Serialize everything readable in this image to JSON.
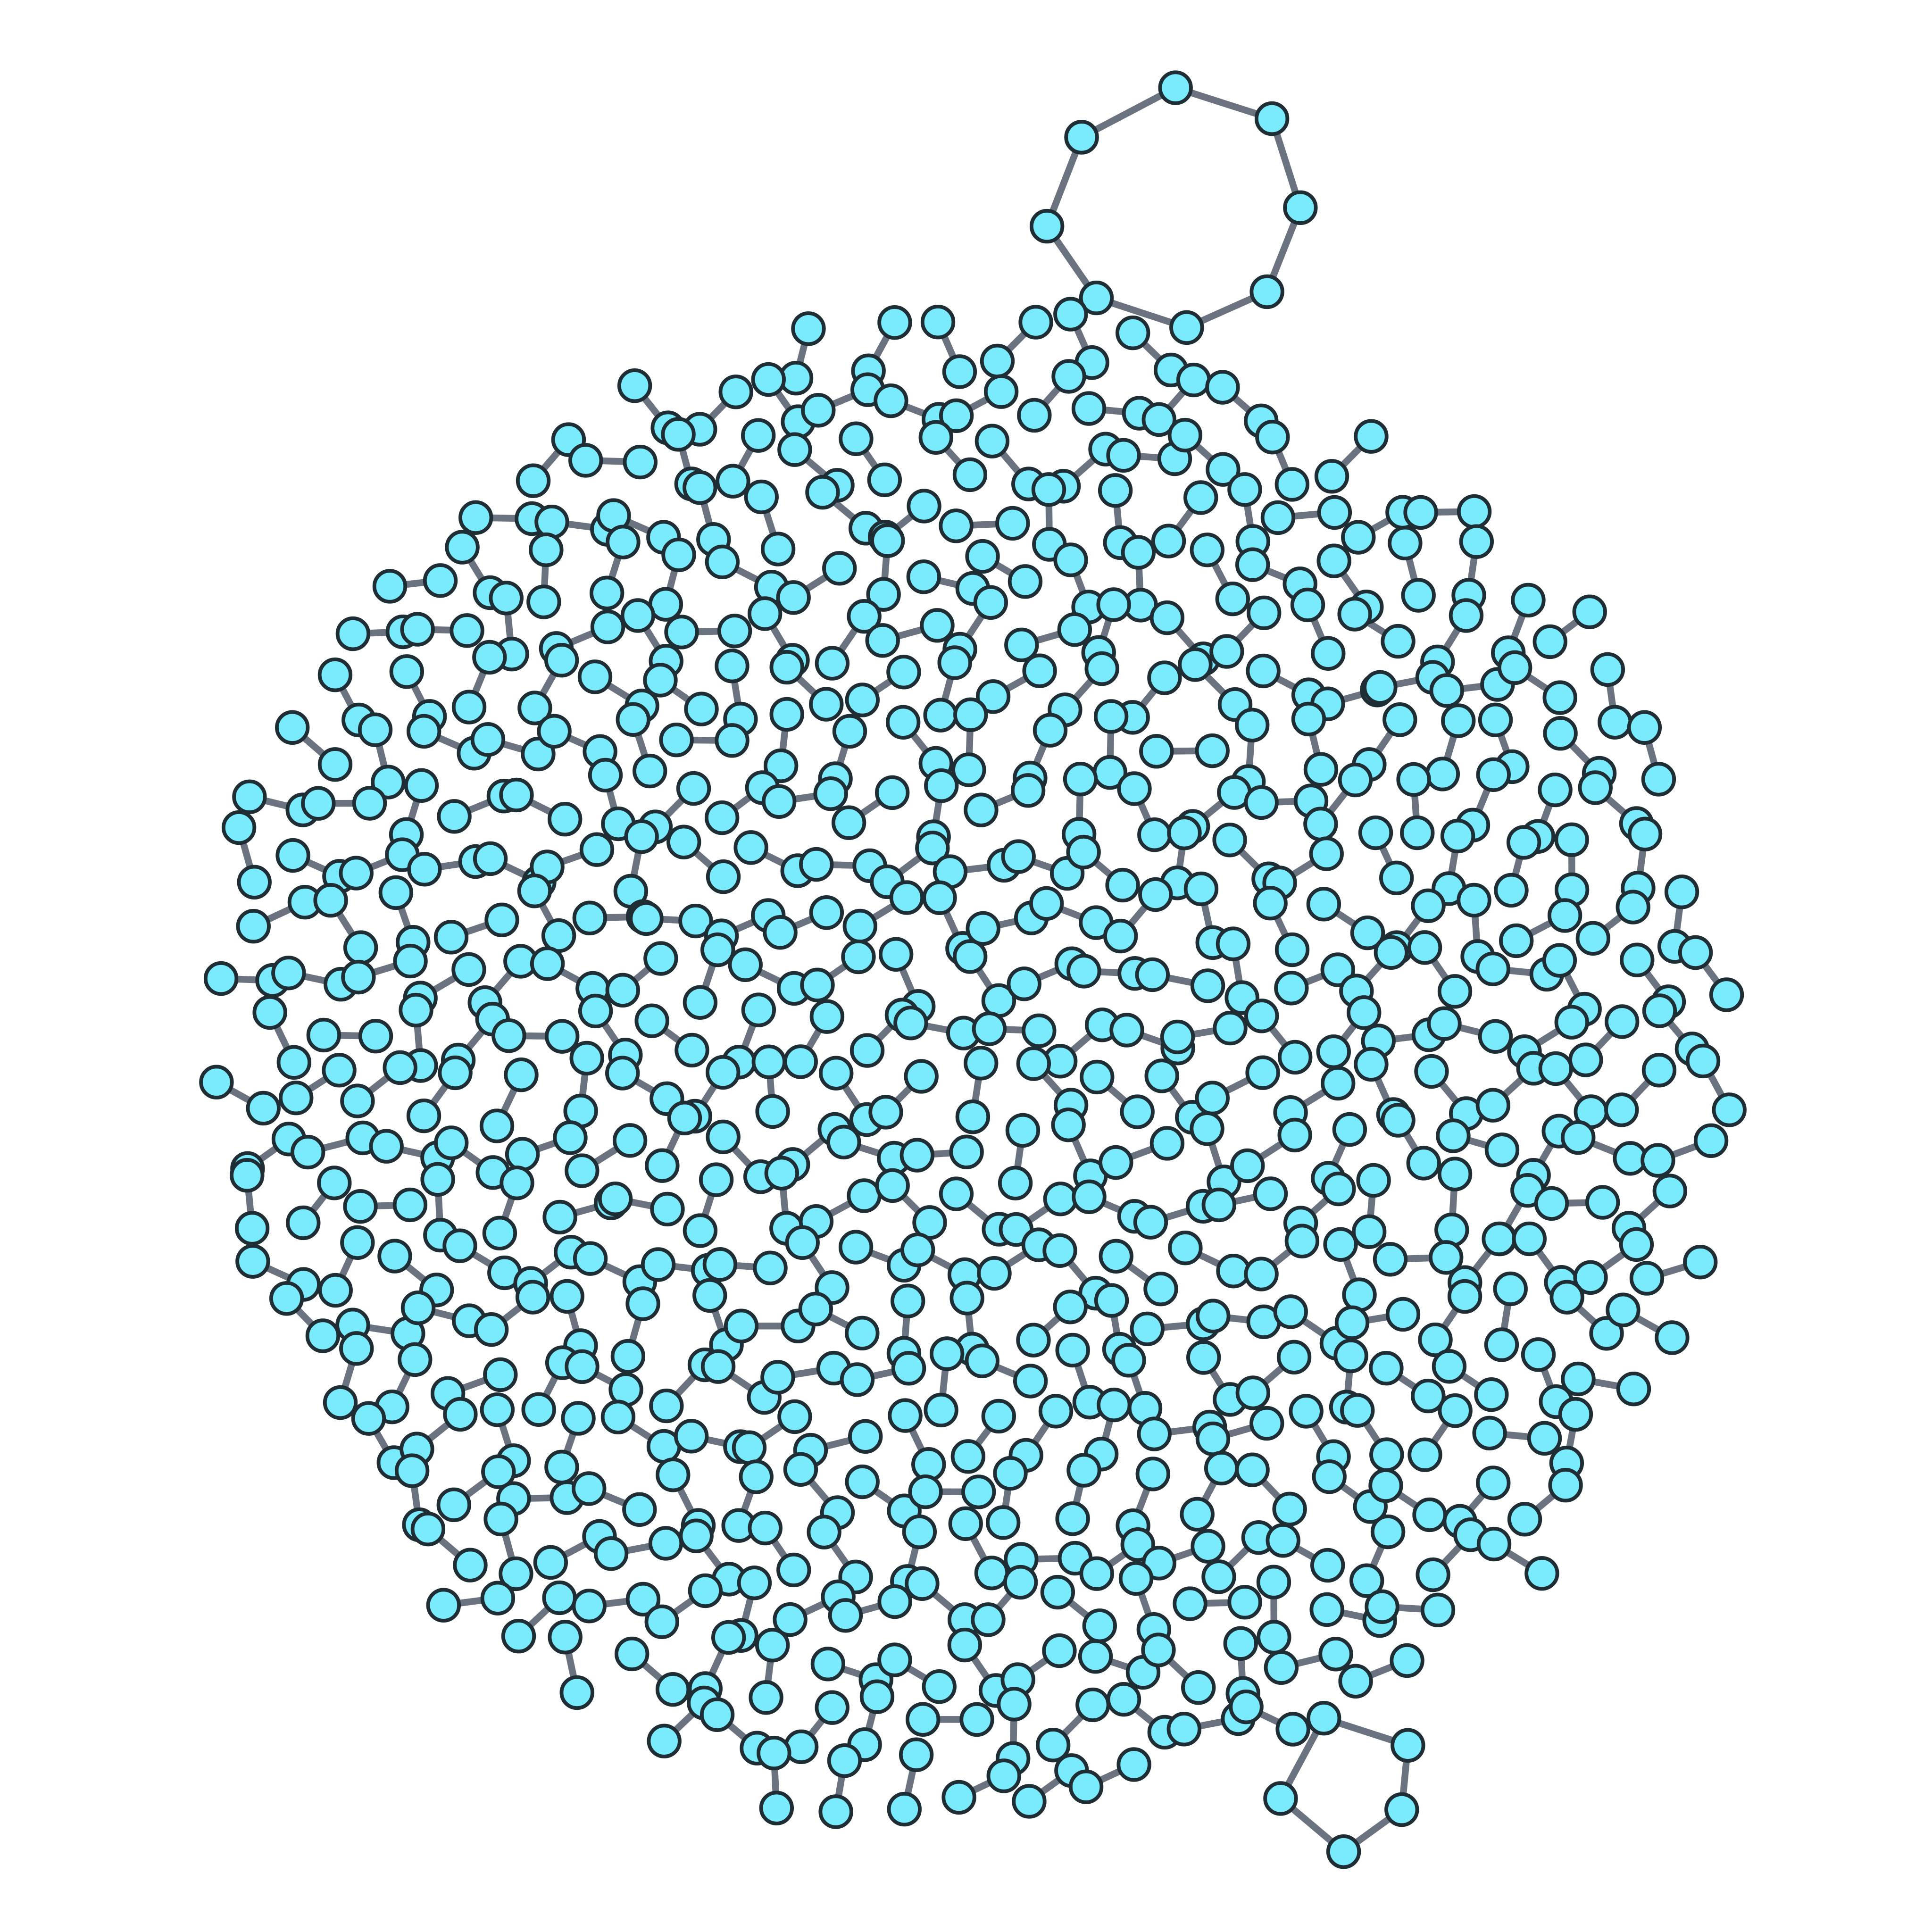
{
  "graph": {
    "node_fill": "#7aebfc",
    "node_stroke": "#1f2d35",
    "edge_color": "#6b7280",
    "background": "#ffffff",
    "components": [
      {
        "type": "cycle",
        "size": 9
      },
      {
        "type": "cycle",
        "size": 5
      },
      {
        "type": "edge-pair",
        "count": 400
      }
    ]
  }
}
